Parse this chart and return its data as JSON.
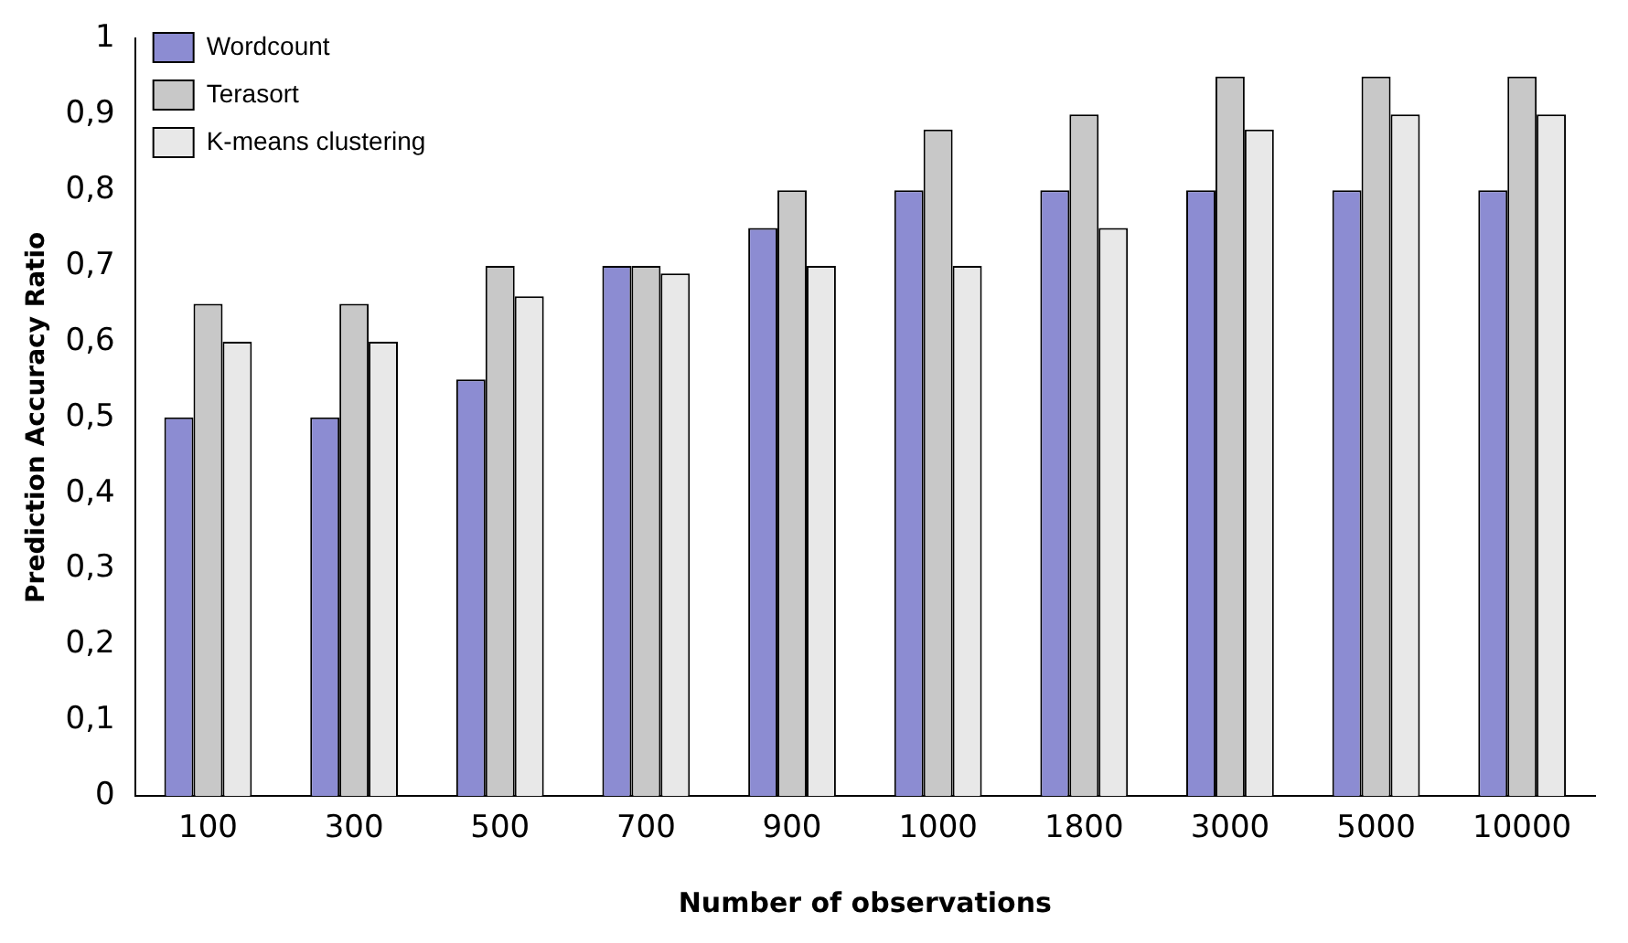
{
  "chart_data": {
    "type": "bar",
    "xlabel": "Number of observations",
    "ylabel": "Prediction Accuracy Ratio",
    "categories": [
      "100",
      "300",
      "500",
      "700",
      "900",
      "1000",
      "1800",
      "3000",
      "5000",
      "10000"
    ],
    "series": [
      {
        "name": "Wordcount",
        "color": "#8c8cd2",
        "values": [
          0.5,
          0.5,
          0.55,
          0.7,
          0.75,
          0.8,
          0.8,
          0.8,
          0.8,
          0.8
        ]
      },
      {
        "name": "Terasort",
        "color": "#c8c8c8",
        "values": [
          0.65,
          0.65,
          0.7,
          0.7,
          0.8,
          0.88,
          0.9,
          0.95,
          0.95,
          0.95
        ]
      },
      {
        "name": "K-means clustering",
        "color": "#e8e8e8",
        "values": [
          0.6,
          0.6,
          0.66,
          0.69,
          0.7,
          0.7,
          0.75,
          0.88,
          0.9,
          0.9
        ]
      }
    ],
    "ylim": [
      0,
      1
    ],
    "yticks": [
      0,
      {
        "value": 0.1,
        "label": "0,1"
      },
      {
        "value": 0.2,
        "label": "0,2"
      },
      {
        "value": 0.3,
        "label": "0,3"
      },
      {
        "value": 0.4,
        "label": "0,4"
      },
      {
        "value": 0.5,
        "label": "0,5"
      },
      {
        "value": 0.6,
        "label": "0,6"
      },
      {
        "value": 0.7,
        "label": "0,7"
      },
      {
        "value": 0.8,
        "label": "0,8"
      },
      {
        "value": 0.9,
        "label": "0,9"
      },
      1
    ],
    "grid": false,
    "legend": "top left"
  }
}
